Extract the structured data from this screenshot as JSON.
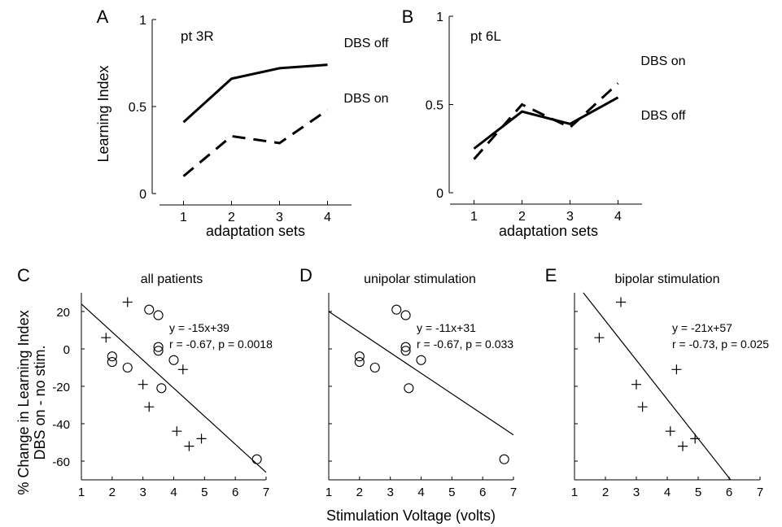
{
  "figure": {
    "shared_ylabel_top": "Learning Index",
    "shared_ylabel_bottom_line1": "% Change in Learning Index",
    "shared_ylabel_bottom_line2": "DBS on - no stim.",
    "shared_xlabel_bottom": "Stimulation Voltage (volts)"
  },
  "chart_data": [
    {
      "type": "line",
      "panel": "A",
      "title": "pt 3R",
      "xlabel": "adaptation sets",
      "ylabel": "Learning Index",
      "x": [
        1,
        2,
        3,
        4
      ],
      "xlim": [
        0.5,
        4.5
      ],
      "ylim": [
        0,
        1
      ],
      "xticks": [
        "1",
        "2",
        "3",
        "4"
      ],
      "yticks": [
        "0",
        "0.5",
        "1"
      ],
      "series": [
        {
          "name": "DBS off",
          "style": "solid",
          "values": [
            0.41,
            0.66,
            0.72,
            0.74
          ]
        },
        {
          "name": "DBS on",
          "style": "dashed",
          "values": [
            0.1,
            0.33,
            0.29,
            0.48
          ]
        }
      ]
    },
    {
      "type": "line",
      "panel": "B",
      "title": "pt 6L",
      "xlabel": "adaptation sets",
      "ylabel": "",
      "x": [
        1,
        2,
        3,
        4
      ],
      "xlim": [
        0.5,
        4.5
      ],
      "ylim": [
        0,
        1
      ],
      "xticks": [
        "1",
        "2",
        "3",
        "4"
      ],
      "yticks": [
        "0",
        "0.5",
        "1"
      ],
      "series": [
        {
          "name": "DBS on",
          "style": "dashed",
          "values": [
            0.19,
            0.5,
            0.37,
            0.62
          ]
        },
        {
          "name": "DBS off",
          "style": "solid",
          "values": [
            0.25,
            0.46,
            0.39,
            0.54
          ]
        }
      ]
    },
    {
      "type": "scatter",
      "panel": "C",
      "title": "all patients",
      "xlabel": "",
      "ylabel": "% Change in Learning Index DBS on - no stim.",
      "xlim": [
        1,
        7
      ],
      "ylim": [
        -70,
        30
      ],
      "xticks": [
        "1",
        "2",
        "3",
        "4",
        "5",
        "6",
        "7"
      ],
      "yticks": [
        "-60",
        "-40",
        "-20",
        "0",
        "20"
      ],
      "fit": {
        "slope": -15,
        "intercept": 39,
        "equation": "y = -15x+39",
        "stats": "r = -0.67, p = 0.0018"
      },
      "series": [
        {
          "marker": "circle",
          "points": [
            [
              2.0,
              -4
            ],
            [
              2.0,
              -7
            ],
            [
              2.5,
              -10
            ],
            [
              3.2,
              21
            ],
            [
              3.5,
              18
            ],
            [
              3.5,
              1
            ],
            [
              3.5,
              -1
            ],
            [
              3.6,
              -21
            ],
            [
              4.0,
              -6
            ],
            [
              6.7,
              -59
            ]
          ]
        },
        {
          "marker": "plus",
          "points": [
            [
              1.8,
              6
            ],
            [
              2.5,
              25
            ],
            [
              3.0,
              -19
            ],
            [
              3.2,
              -31
            ],
            [
              4.1,
              -44
            ],
            [
              4.3,
              -11
            ],
            [
              4.5,
              -52
            ],
            [
              4.9,
              -48
            ]
          ]
        }
      ]
    },
    {
      "type": "scatter",
      "panel": "D",
      "title": "unipolar stimulation",
      "xlabel": "Stimulation Voltage (volts)",
      "ylabel": "",
      "xlim": [
        1,
        7
      ],
      "ylim": [
        -70,
        30
      ],
      "xticks": [
        "1",
        "2",
        "3",
        "4",
        "5",
        "6",
        "7"
      ],
      "yticks": [],
      "fit": {
        "slope": -11,
        "intercept": 31,
        "equation": "y = -11x+31",
        "stats": "r = -0.67, p = 0.033"
      },
      "series": [
        {
          "marker": "circle",
          "points": [
            [
              2.0,
              -4
            ],
            [
              2.0,
              -7
            ],
            [
              2.5,
              -10
            ],
            [
              3.2,
              21
            ],
            [
              3.5,
              18
            ],
            [
              3.5,
              1
            ],
            [
              3.5,
              -1
            ],
            [
              3.6,
              -21
            ],
            [
              4.0,
              -6
            ],
            [
              6.7,
              -59
            ]
          ]
        }
      ]
    },
    {
      "type": "scatter",
      "panel": "E",
      "title": "bipolar stimulation",
      "xlabel": "",
      "ylabel": "",
      "xlim": [
        1,
        7
      ],
      "ylim": [
        -70,
        30
      ],
      "xticks": [
        "1",
        "2",
        "3",
        "4",
        "5",
        "6",
        "7"
      ],
      "yticks": [],
      "fit": {
        "slope": -21,
        "intercept": 57,
        "equation": "y = -21x+57",
        "stats": "r = -0.73, p = 0.025"
      },
      "series": [
        {
          "marker": "plus",
          "points": [
            [
              1.8,
              6
            ],
            [
              2.5,
              25
            ],
            [
              3.0,
              -19
            ],
            [
              3.2,
              -31
            ],
            [
              4.1,
              -44
            ],
            [
              4.3,
              -11
            ],
            [
              4.5,
              -52
            ],
            [
              4.9,
              -48
            ]
          ]
        }
      ]
    }
  ]
}
